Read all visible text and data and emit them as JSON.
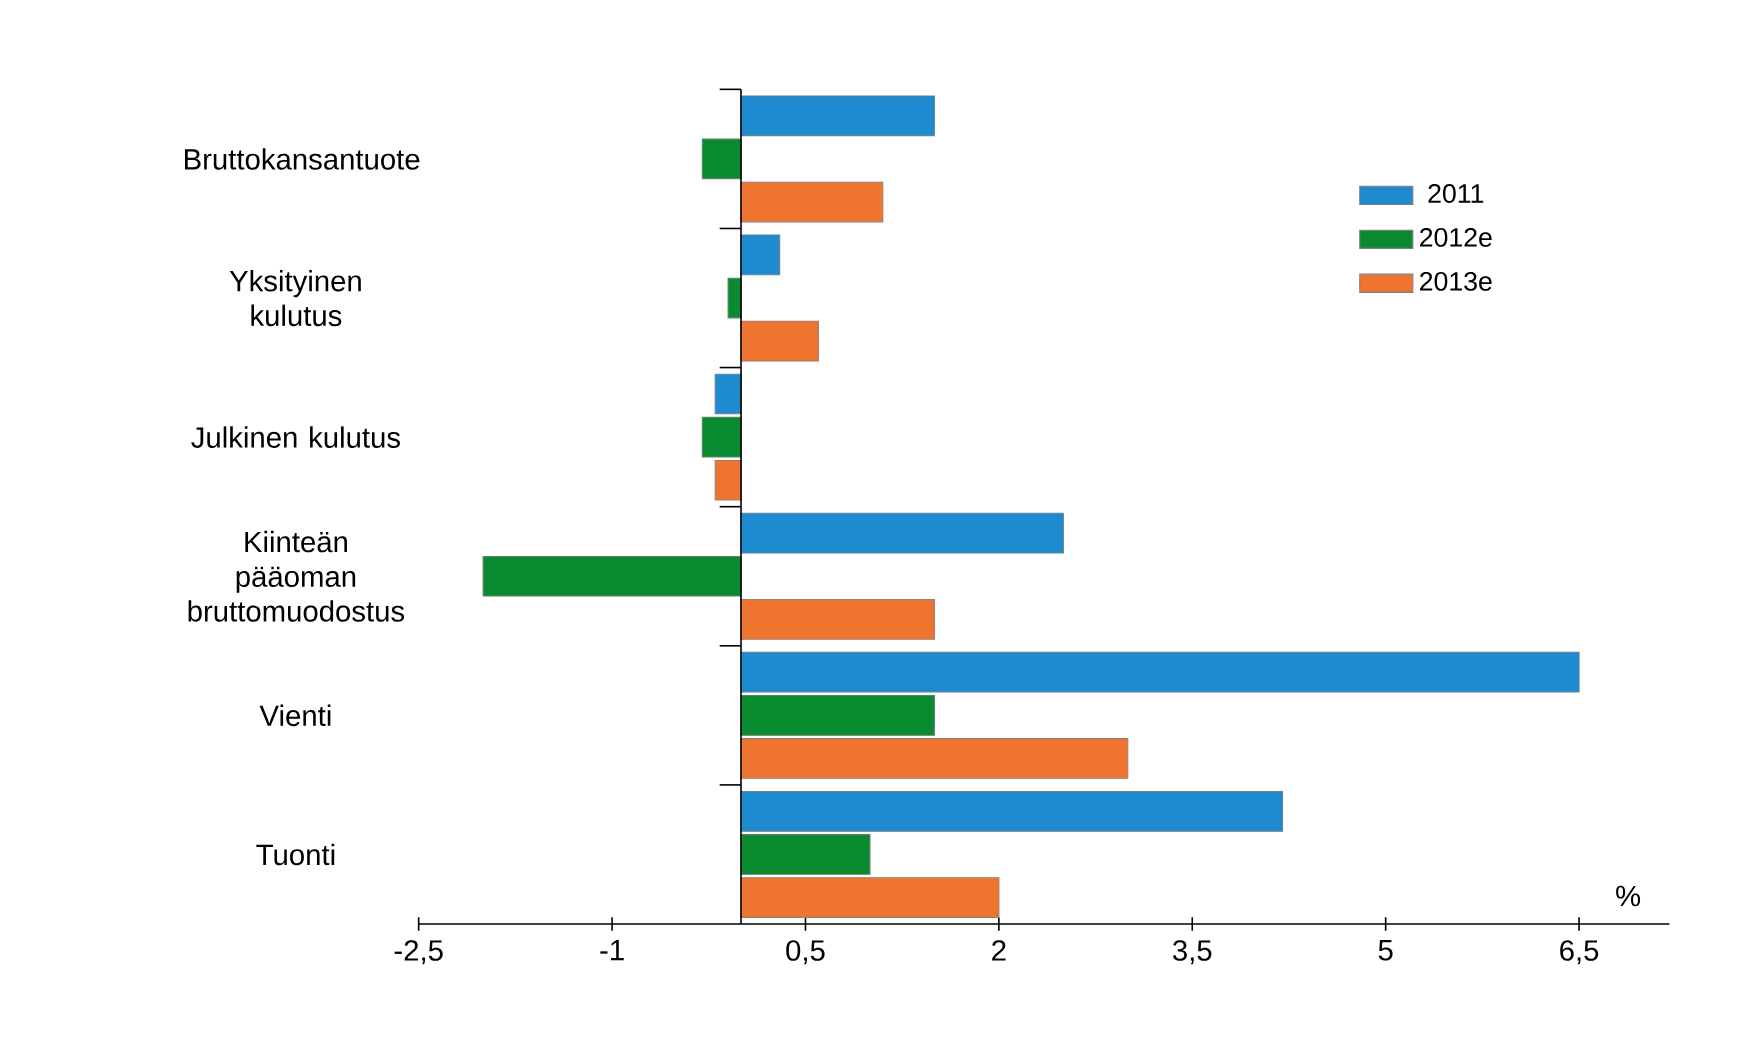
{
  "chart_data": {
    "type": "bar",
    "orientation": "horizontal",
    "xlabel": "%",
    "categories": [
      "Bruttokansantuote",
      "Yksityinen kulutus",
      "Julkinen kulutus",
      "Kiinteän pääoman bruttomuodostus",
      "Vienti",
      "Tuonti"
    ],
    "series": [
      {
        "name": "2011",
        "color": "#1e8ad0",
        "values": [
          1.5,
          0.3,
          -0.2,
          2.5,
          6.5,
          4.2
        ]
      },
      {
        "name": "2012e",
        "color": "#0a8a2e",
        "values": [
          -0.3,
          -0.1,
          -0.3,
          -2.0,
          1.5,
          1.0
        ]
      },
      {
        "name": "2013e",
        "color": "#ee7430",
        "values": [
          1.1,
          0.6,
          -0.2,
          1.5,
          3.0,
          2.0
        ]
      }
    ],
    "xlim": [
      -2.5,
      7.2
    ],
    "xticks": [
      {
        "value": -2.5,
        "label": "-2,5"
      },
      -1,
      {
        "value": 0.5,
        "label": "0,5"
      },
      2,
      {
        "value": 3.5,
        "label": "3,5"
      },
      5,
      {
        "value": 6.5,
        "label": "6,5"
      }
    ],
    "legend": "top right",
    "grid": false
  }
}
